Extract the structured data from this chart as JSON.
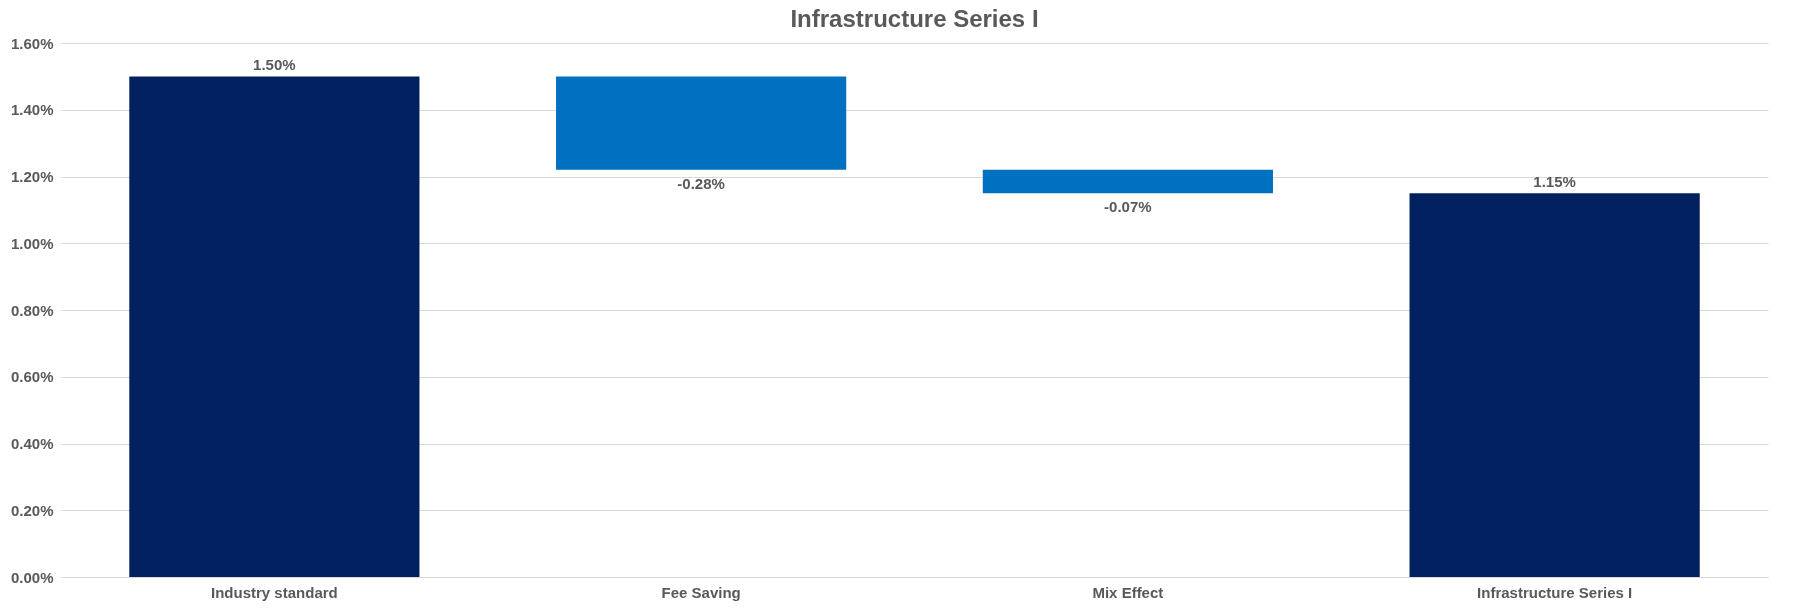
{
  "chart_data": {
    "type": "bar",
    "title": "Infrastructure Series I",
    "categories": [
      "Industry standard",
      "Fee Saving",
      "Mix Effect",
      "Infrastructure Series I"
    ],
    "values": [
      1.5,
      -0.28,
      -0.07,
      1.15
    ],
    "base": [
      0,
      1.5,
      1.22,
      0
    ],
    "colors": [
      "#002060",
      "#0070c0",
      "#0070c0",
      "#002060"
    ],
    "value_labels": [
      "1.50%",
      "-0.28%",
      "-0.07%",
      "1.15%"
    ],
    "ylim": [
      0,
      1.6
    ],
    "yticks": [
      {
        "value": 0,
        "label": "0.00%"
      },
      {
        "value": 0.2,
        "label": "0.20%"
      },
      {
        "value": 0.4,
        "label": "0.40%"
      },
      {
        "value": 0.6,
        "label": "0.60%"
      },
      {
        "value": 0.8,
        "label": "0.80%"
      },
      {
        "value": 1.0,
        "label": "1.00%"
      },
      {
        "value": 1.2,
        "label": "1.20%"
      },
      {
        "value": 1.4,
        "label": "1.40%"
      },
      {
        "value": 1.6,
        "label": "1.60%"
      }
    ],
    "grid": "y"
  }
}
